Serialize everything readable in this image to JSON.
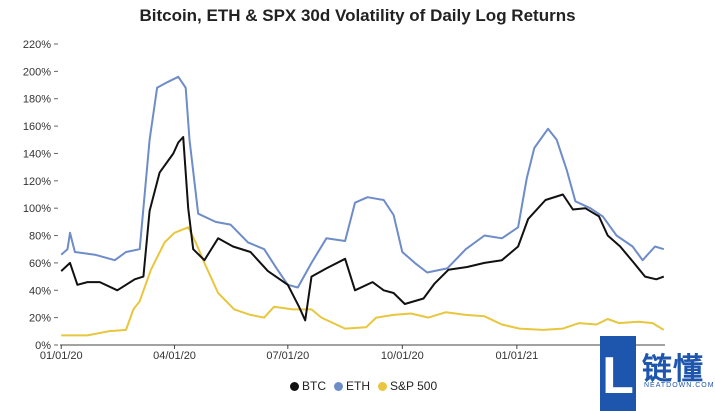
{
  "chart_data": {
    "type": "line",
    "title": "Bitcoin, ETH & SPX 30d Volatility of Daily Log Returns",
    "xlabel": "",
    "ylabel": "",
    "ylim": [
      0,
      220
    ],
    "x_range": [
      "2019-12-31",
      "2021-04-30"
    ],
    "y_ticks": [
      "0%",
      "20%",
      "40%",
      "60%",
      "80%",
      "100%",
      "120%",
      "140%",
      "160%",
      "180%",
      "200%",
      "220%"
    ],
    "x_ticks": [
      {
        "date": "2020-01-01",
        "label": "01/01/20"
      },
      {
        "date": "2020-04-01",
        "label": "04/01/20"
      },
      {
        "date": "2020-07-01",
        "label": "07/01/20"
      },
      {
        "date": "2020-10-01",
        "label": "10/01/20"
      },
      {
        "date": "2021-01-01",
        "label": "01/01/21"
      }
    ],
    "legend_position": "bottom",
    "grid": false,
    "series": [
      {
        "name": "BTC",
        "color": "#111111",
        "points": [
          [
            "2020-01-01",
            54
          ],
          [
            "2020-01-08",
            60
          ],
          [
            "2020-01-14",
            44
          ],
          [
            "2020-01-22",
            46
          ],
          [
            "2020-02-01",
            46
          ],
          [
            "2020-02-15",
            40
          ],
          [
            "2020-02-29",
            48
          ],
          [
            "2020-03-07",
            50
          ],
          [
            "2020-03-12",
            98
          ],
          [
            "2020-03-20",
            126
          ],
          [
            "2020-03-31",
            140
          ],
          [
            "2020-04-04",
            148
          ],
          [
            "2020-04-08",
            152
          ],
          [
            "2020-04-12",
            100
          ],
          [
            "2020-04-16",
            70
          ],
          [
            "2020-04-25",
            62
          ],
          [
            "2020-05-06",
            78
          ],
          [
            "2020-05-18",
            72
          ],
          [
            "2020-06-01",
            68
          ],
          [
            "2020-06-15",
            54
          ],
          [
            "2020-07-01",
            44
          ],
          [
            "2020-07-10",
            28
          ],
          [
            "2020-07-15",
            18
          ],
          [
            "2020-07-20",
            50
          ],
          [
            "2020-08-01",
            56
          ],
          [
            "2020-08-16",
            63
          ],
          [
            "2020-08-24",
            40
          ],
          [
            "2020-09-07",
            46
          ],
          [
            "2020-09-16",
            40
          ],
          [
            "2020-09-24",
            38
          ],
          [
            "2020-10-03",
            30
          ],
          [
            "2020-10-18",
            34
          ],
          [
            "2020-10-27",
            45
          ],
          [
            "2020-11-07",
            55
          ],
          [
            "2020-11-22",
            57
          ],
          [
            "2020-12-06",
            60
          ],
          [
            "2020-12-20",
            62
          ],
          [
            "2021-01-02",
            72
          ],
          [
            "2021-01-10",
            92
          ],
          [
            "2021-01-24",
            106
          ],
          [
            "2021-02-07",
            110
          ],
          [
            "2021-02-15",
            99
          ],
          [
            "2021-02-25",
            100
          ],
          [
            "2021-03-08",
            94
          ],
          [
            "2021-03-15",
            80
          ],
          [
            "2021-03-25",
            72
          ],
          [
            "2021-04-05",
            60
          ],
          [
            "2021-04-14",
            50
          ],
          [
            "2021-04-23",
            48
          ],
          [
            "2021-04-29",
            50
          ]
        ]
      },
      {
        "name": "ETH",
        "color": "#6d8cc8",
        "points": [
          [
            "2020-01-01",
            66
          ],
          [
            "2020-01-06",
            70
          ],
          [
            "2020-01-08",
            82
          ],
          [
            "2020-01-12",
            68
          ],
          [
            "2020-01-28",
            66
          ],
          [
            "2020-02-13",
            62
          ],
          [
            "2020-02-22",
            68
          ],
          [
            "2020-03-04",
            70
          ],
          [
            "2020-03-12",
            150
          ],
          [
            "2020-03-18",
            188
          ],
          [
            "2020-03-26",
            192
          ],
          [
            "2020-04-04",
            196
          ],
          [
            "2020-04-10",
            188
          ],
          [
            "2020-04-13",
            150
          ],
          [
            "2020-04-20",
            96
          ],
          [
            "2020-05-04",
            90
          ],
          [
            "2020-05-16",
            88
          ],
          [
            "2020-05-30",
            75
          ],
          [
            "2020-06-12",
            70
          ],
          [
            "2020-06-22",
            56
          ],
          [
            "2020-07-01",
            44
          ],
          [
            "2020-07-09",
            42
          ],
          [
            "2020-07-20",
            60
          ],
          [
            "2020-08-01",
            78
          ],
          [
            "2020-08-16",
            76
          ],
          [
            "2020-08-24",
            104
          ],
          [
            "2020-09-03",
            108
          ],
          [
            "2020-09-16",
            106
          ],
          [
            "2020-09-24",
            95
          ],
          [
            "2020-10-01",
            68
          ],
          [
            "2020-10-11",
            60
          ],
          [
            "2020-10-21",
            53
          ],
          [
            "2020-11-06",
            56
          ],
          [
            "2020-11-21",
            70
          ],
          [
            "2020-12-06",
            80
          ],
          [
            "2020-12-20",
            78
          ],
          [
            "2021-01-02",
            86
          ],
          [
            "2021-01-09",
            122
          ],
          [
            "2021-01-15",
            144
          ],
          [
            "2021-01-26",
            158
          ],
          [
            "2021-02-02",
            150
          ],
          [
            "2021-02-10",
            128
          ],
          [
            "2021-02-17",
            105
          ],
          [
            "2021-03-01",
            100
          ],
          [
            "2021-03-11",
            94
          ],
          [
            "2021-03-22",
            80
          ],
          [
            "2021-04-04",
            72
          ],
          [
            "2021-04-12",
            62
          ],
          [
            "2021-04-22",
            72
          ],
          [
            "2021-04-29",
            70
          ]
        ]
      },
      {
        "name": "S&P 500",
        "color": "#e8c63e",
        "points": [
          [
            "2020-01-01",
            7
          ],
          [
            "2020-01-22",
            7
          ],
          [
            "2020-02-08",
            10
          ],
          [
            "2020-02-22",
            11
          ],
          [
            "2020-02-28",
            26
          ],
          [
            "2020-03-04",
            32
          ],
          [
            "2020-03-13",
            55
          ],
          [
            "2020-03-24",
            75
          ],
          [
            "2020-04-01",
            82
          ],
          [
            "2020-04-12",
            86
          ],
          [
            "2020-04-18",
            75
          ],
          [
            "2020-04-26",
            58
          ],
          [
            "2020-05-06",
            38
          ],
          [
            "2020-05-19",
            26
          ],
          [
            "2020-06-01",
            22
          ],
          [
            "2020-06-12",
            20
          ],
          [
            "2020-06-20",
            28
          ],
          [
            "2020-07-05",
            26
          ],
          [
            "2020-07-20",
            26
          ],
          [
            "2020-07-28",
            20
          ],
          [
            "2020-08-16",
            12
          ],
          [
            "2020-09-02",
            13
          ],
          [
            "2020-09-10",
            20
          ],
          [
            "2020-09-24",
            22
          ],
          [
            "2020-10-08",
            23
          ],
          [
            "2020-10-22",
            20
          ],
          [
            "2020-11-05",
            24
          ],
          [
            "2020-11-21",
            22
          ],
          [
            "2020-12-06",
            21
          ],
          [
            "2020-12-20",
            15
          ],
          [
            "2021-01-03",
            12
          ],
          [
            "2021-01-22",
            11
          ],
          [
            "2021-02-07",
            12
          ],
          [
            "2021-02-20",
            16
          ],
          [
            "2021-03-06",
            15
          ],
          [
            "2021-03-15",
            19
          ],
          [
            "2021-03-24",
            16
          ],
          [
            "2021-04-09",
            17
          ],
          [
            "2021-04-20",
            16
          ],
          [
            "2021-04-29",
            11
          ]
        ]
      }
    ]
  },
  "brand": {
    "letter": "L",
    "chinese": "链懂",
    "english": "NEATDOWN.COM"
  }
}
